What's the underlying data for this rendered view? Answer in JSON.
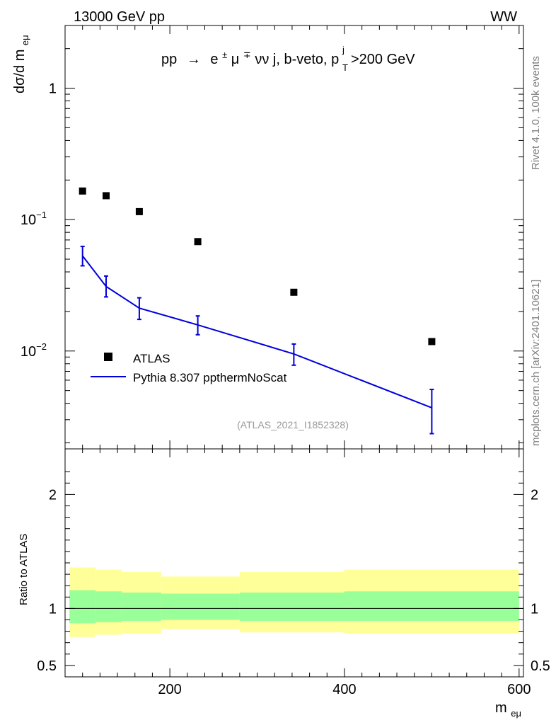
{
  "header": {
    "energy_label": "13000 GeV pp",
    "process_label": "WW"
  },
  "side_labels": {
    "rivet": "Rivet 4.1.0,  100k events",
    "mcplots": "mcplots.cern.ch [arXiv:2401.10621]"
  },
  "chart_data": {
    "type": "scatter",
    "title_parts": {
      "pp": "pp",
      "arrow": "→",
      "e": "e",
      "e_sup": "±",
      "mu": "μ",
      "mu_sup": "∓",
      "rest": "νν j, b-veto, p",
      "pt_sup": "j",
      "pt_sub": "T",
      "cut": ">200 GeV"
    },
    "analysis_id": "(ATLAS_2021_I1852328)",
    "ylabel": {
      "main": "dσ/d m",
      "sub": "eμ"
    },
    "xlabel": {
      "main": "m",
      "sub": "eμ"
    },
    "ratio_ylabel": "Ratio to ATLAS",
    "xlim": [
      80,
      605
    ],
    "ylim": [
      0.0018,
      3.0
    ],
    "ratio_ylim": [
      0.4,
      2.4
    ],
    "x_ticks": [
      {
        "value": 200,
        "label": "200"
      },
      {
        "value": 400,
        "label": "400"
      },
      {
        "value": 600,
        "label": "600"
      }
    ],
    "y_ticks": [
      {
        "value": 0.01,
        "base": "10",
        "exp": "−2"
      },
      {
        "value": 0.1,
        "base": "10",
        "exp": "−1"
      },
      {
        "value": 1,
        "base": "1",
        "exp": ""
      }
    ],
    "ratio_ticks": [
      {
        "value": 0.5,
        "label": "0.5"
      },
      {
        "value": 1,
        "label": "1"
      },
      {
        "value": 2,
        "label": "2"
      }
    ],
    "legend_position": "bottom-left",
    "series": [
      {
        "name": "ATLAS",
        "kind": "data",
        "color": "#000000",
        "x": [
          100,
          127,
          165,
          232,
          342,
          500
        ],
        "y": [
          0.165,
          0.152,
          0.115,
          0.068,
          0.028,
          0.0118
        ]
      },
      {
        "name": "Pythia 8.307 ppthermNoScat",
        "kind": "mc",
        "color": "#0000dd",
        "x": [
          100,
          127,
          165,
          232,
          342,
          500
        ],
        "y": [
          0.053,
          0.031,
          0.0212,
          0.0158,
          0.0095,
          0.0037
        ],
        "y_err_low": [
          0.0085,
          0.0052,
          0.0038,
          0.0025,
          0.0017,
          0.00135
        ],
        "y_err_high": [
          0.0095,
          0.0062,
          0.0042,
          0.0027,
          0.0018,
          0.0014
        ]
      }
    ],
    "ratio_bands": {
      "bins": [
        [
          85,
          115
        ],
        [
          115,
          145
        ],
        [
          145,
          190
        ],
        [
          190,
          280
        ],
        [
          280,
          400
        ],
        [
          400,
          600
        ]
      ],
      "inner": [
        [
          0.87,
          1.16
        ],
        [
          0.88,
          1.15
        ],
        [
          0.89,
          1.14
        ],
        [
          0.9,
          1.13
        ],
        [
          0.89,
          1.14
        ],
        [
          0.89,
          1.15
        ]
      ],
      "outer": [
        [
          0.75,
          1.36
        ],
        [
          0.77,
          1.34
        ],
        [
          0.78,
          1.32
        ],
        [
          0.82,
          1.28
        ],
        [
          0.79,
          1.32
        ],
        [
          0.78,
          1.34
        ]
      ],
      "inner_color": "#99ff99",
      "outer_color": "#ffff99"
    }
  }
}
